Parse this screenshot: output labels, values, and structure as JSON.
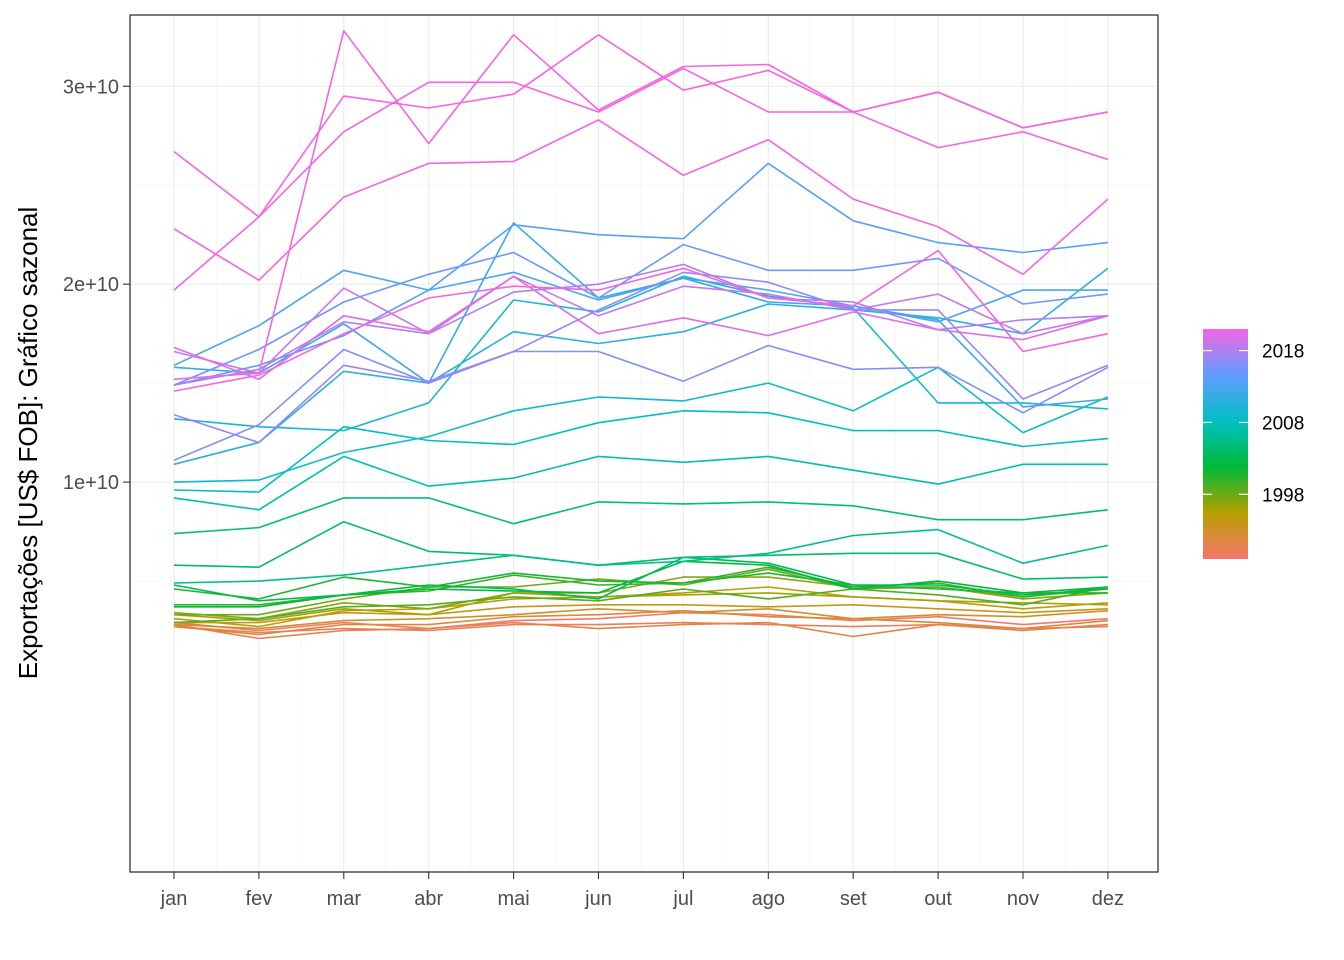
{
  "chart_data": {
    "type": "line",
    "title": "",
    "xlabel": "",
    "ylabel": "Exportações [US$ FOB]: Gráfico sazonal",
    "categories": [
      "jan",
      "fev",
      "mar",
      "abr",
      "mai",
      "jun",
      "jul",
      "ago",
      "set",
      "out",
      "nov",
      "dez"
    ],
    "ylim": [
      -9700000000,
      33600000000
    ],
    "y_ticks": [
      10000000000,
      20000000000,
      30000000000
    ],
    "y_tick_labels": [
      "1e+10",
      "2e+10",
      "3e+10"
    ],
    "grid": true,
    "legend": {
      "position": "right",
      "type": "colorbar",
      "range": [
        1989,
        2021
      ],
      "breaks": [
        1998,
        2008,
        2018
      ],
      "labels": [
        "1998",
        "2008",
        "2018"
      ],
      "gradient": [
        "#F8766D",
        "#B79F00",
        "#00BA38",
        "#00BFC4",
        "#619CFF",
        "#F564E3"
      ]
    },
    "series": [
      {
        "year": 1989,
        "values": [
          2900000000,
          2500000000,
          2900000000,
          2600000000,
          3000000000,
          3100000000,
          3400000000,
          3300000000,
          3000000000,
          3200000000,
          2800000000,
          3100000000
        ]
      },
      {
        "year": 1990,
        "values": [
          2700000000,
          2400000000,
          2600000000,
          2500000000,
          2800000000,
          2800000000,
          2900000000,
          2800000000,
          2700000000,
          2800000000,
          2600000000,
          2700000000
        ]
      },
      {
        "year": 1991,
        "values": [
          2800000000,
          2100000000,
          2500000000,
          2600000000,
          2900000000,
          2600000000,
          2800000000,
          2900000000,
          2200000000,
          2800000000,
          2500000000,
          2800000000
        ]
      },
      {
        "year": 1992,
        "values": [
          2700000000,
          2300000000,
          2800000000,
          2800000000,
          3200000000,
          3300000000,
          3500000000,
          3200000000,
          3100000000,
          2900000000,
          2600000000,
          3000000000
        ]
      },
      {
        "year": 1993,
        "values": [
          2800000000,
          2600000000,
          3000000000,
          3100000000,
          3300000000,
          3600000000,
          3400000000,
          3600000000,
          3100000000,
          3300000000,
          3200000000,
          3500000000
        ]
      },
      {
        "year": 1994,
        "values": [
          2900000000,
          2900000000,
          3400000000,
          3300000000,
          3700000000,
          3800000000,
          3800000000,
          3700000000,
          3800000000,
          3600000000,
          3400000000,
          3600000000
        ]
      },
      {
        "year": 1995,
        "values": [
          3100000000,
          2700000000,
          3500000000,
          3600000000,
          4100000000,
          4200000000,
          4400000000,
          4700000000,
          4200000000,
          4000000000,
          3600000000,
          3900000000
        ]
      },
      {
        "year": 1996,
        "values": [
          3300000000,
          3000000000,
          3600000000,
          3300000000,
          4400000000,
          4200000000,
          4300000000,
          4400000000,
          4200000000,
          4000000000,
          3900000000,
          3800000000
        ]
      },
      {
        "year": 1997,
        "values": [
          3400000000,
          3100000000,
          3900000000,
          3600000000,
          4400000000,
          4400000000,
          5200000000,
          5200000000,
          4700000000,
          4700000000,
          4100000000,
          4400000000
        ]
      },
      {
        "year": 1998,
        "values": [
          3300000000,
          3300000000,
          4100000000,
          4700000000,
          4700000000,
          5100000000,
          4800000000,
          5600000000,
          4600000000,
          4700000000,
          4200000000,
          4600000000
        ]
      },
      {
        "year": 1999,
        "values": [
          2900000000,
          3100000000,
          3700000000,
          3800000000,
          4200000000,
          4000000000,
          4600000000,
          4100000000,
          4600000000,
          4300000000,
          3800000000,
          4700000000
        ]
      },
      {
        "year": 2000,
        "values": [
          3800000000,
          3800000000,
          4300000000,
          4500000000,
          5300000000,
          4800000000,
          4900000000,
          5700000000,
          4700000000,
          4900000000,
          4200000000,
          4700000000
        ]
      },
      {
        "year": 2001,
        "values": [
          4600000000,
          4100000000,
          5200000000,
          4700000000,
          5400000000,
          5000000000,
          4900000000,
          5400000000,
          4800000000,
          4600000000,
          4400000000,
          4400000000
        ]
      },
      {
        "year": 2002,
        "values": [
          3700000000,
          3700000000,
          4300000000,
          4600000000,
          4500000000,
          4400000000,
          6000000000,
          5800000000,
          4600000000,
          5000000000,
          4400000000,
          4700000000
        ]
      },
      {
        "year": 2003,
        "values": [
          4800000000,
          4000000000,
          4300000000,
          4800000000,
          4600000000,
          4100000000,
          6200000000,
          5900000000,
          4800000000,
          4800000000,
          4300000000,
          4600000000
        ]
      },
      {
        "year": 2004,
        "values": [
          5800000000,
          5700000000,
          8000000000,
          6500000000,
          6300000000,
          5800000000,
          6200000000,
          6300000000,
          6400000000,
          6400000000,
          5100000000,
          5200000000
        ]
      },
      {
        "year": 2005,
        "values": [
          7400000000,
          7700000000,
          9200000000,
          9200000000,
          7900000000,
          9000000000,
          8900000000,
          9000000000,
          8800000000,
          8100000000,
          8100000000,
          8600000000
        ]
      },
      {
        "year": 2006,
        "values": [
          4900000000,
          5000000000,
          5300000000,
          5800000000,
          6300000000,
          5800000000,
          6000000000,
          6400000000,
          7300000000,
          7600000000,
          5900000000,
          6800000000
        ]
      },
      {
        "year": 2007,
        "values": [
          9200000000,
          8600000000,
          11300000000,
          9800000000,
          10200000000,
          11300000000,
          11000000000,
          11300000000,
          10600000000,
          9900000000,
          10900000000,
          10900000000
        ]
      },
      {
        "year": 2008,
        "values": [
          9600000000,
          9500000000,
          12800000000,
          12100000000,
          11900000000,
          13000000000,
          13600000000,
          13500000000,
          12600000000,
          12600000000,
          11800000000,
          12200000000
        ]
      },
      {
        "year": 2009,
        "values": [
          10000000000,
          10100000000,
          11500000000,
          12300000000,
          13600000000,
          14300000000,
          14100000000,
          15000000000,
          13600000000,
          15800000000,
          12500000000,
          14300000000
        ]
      },
      {
        "year": 2010,
        "values": [
          13200000000,
          12800000000,
          12600000000,
          14000000000,
          19200000000,
          18600000000,
          20400000000,
          19400000000,
          18800000000,
          14000000000,
          14000000000,
          13700000000
        ]
      },
      {
        "year": 2011,
        "values": [
          10900000000,
          12000000000,
          15600000000,
          15000000000,
          17600000000,
          17000000000,
          17600000000,
          19000000000,
          18700000000,
          18300000000,
          17500000000,
          20800000000
        ]
      },
      {
        "year": 2012,
        "values": [
          15800000000,
          15500000000,
          18000000000,
          15000000000,
          23100000000,
          19300000000,
          20300000000,
          19100000000,
          18900000000,
          18200000000,
          13800000000,
          14200000000
        ]
      },
      {
        "year": 2013,
        "values": [
          15900000000,
          17900000000,
          20700000000,
          19700000000,
          20600000000,
          19200000000,
          20300000000,
          19700000000,
          18900000000,
          18100000000,
          19700000000,
          19700000000
        ]
      },
      {
        "year": 2014,
        "values": [
          14900000000,
          15900000000,
          17400000000,
          19700000000,
          23000000000,
          22500000000,
          22300000000,
          26100000000,
          23200000000,
          22100000000,
          21600000000,
          22100000000
        ]
      },
      {
        "year": 2015,
        "values": [
          14900000000,
          16700000000,
          19100000000,
          20500000000,
          21600000000,
          19300000000,
          22000000000,
          20700000000,
          20700000000,
          21300000000,
          19000000000,
          19500000000
        ]
      },
      {
        "year": 2016,
        "values": [
          11100000000,
          12900000000,
          16700000000,
          15000000000,
          16600000000,
          16600000000,
          15100000000,
          16900000000,
          15700000000,
          15800000000,
          13500000000,
          15800000000
        ]
      },
      {
        "year": 2017,
        "values": [
          13400000000,
          12000000000,
          15900000000,
          15100000000,
          16600000000,
          18700000000,
          20600000000,
          20100000000,
          18700000000,
          18700000000,
          14200000000,
          15900000000
        ]
      },
      {
        "year": 2018,
        "values": [
          14900000000,
          15700000000,
          18100000000,
          17500000000,
          19600000000,
          20000000000,
          21000000000,
          19300000000,
          19100000000,
          17700000000,
          18200000000,
          18400000000
        ]
      },
      {
        "year": 2019,
        "values": [
          16600000000,
          15500000000,
          19800000000,
          17500000000,
          20400000000,
          18400000000,
          19900000000,
          19500000000,
          18700000000,
          19500000000,
          17500000000,
          18400000000
        ]
      },
      {
        "year": 2020,
        "values": [
          16800000000,
          15200000000,
          18400000000,
          17600000000,
          20400000000,
          17500000000,
          18300000000,
          17400000000,
          18600000000,
          17700000000,
          17200000000,
          18400000000
        ]
      },
      {
        "year": 2021,
        "values": [
          14600000000,
          15400000000,
          17500000000,
          19300000000,
          19900000000,
          19700000000,
          20800000000,
          19300000000,
          18900000000,
          21700000000,
          16600000000,
          17500000000
        ]
      },
      {
        "year": 2022,
        "values": [
          19700000000,
          23400000000,
          29500000000,
          28900000000,
          29600000000,
          32600000000,
          29800000000,
          30800000000,
          28700000000,
          26900000000,
          27700000000,
          26300000000
        ]
      },
      {
        "year": 2023,
        "values": [
          26700000000,
          23400000000,
          27700000000,
          30200000000,
          30200000000,
          28700000000,
          30900000000,
          28700000000,
          28700000000,
          29700000000,
          27900000000,
          28700000000
        ]
      },
      {
        "year": 2024,
        "values": [
          22800000000,
          20200000000,
          24400000000,
          26100000000,
          26200000000,
          28300000000,
          25500000000,
          27300000000,
          24300000000,
          22900000000,
          20500000000,
          24300000000
        ]
      },
      {
        "year": 2025,
        "values": [
          15200000000,
          15500000000,
          32800000000,
          27100000000,
          32600000000,
          28800000000,
          31000000000,
          31100000000,
          28700000000,
          29700000000,
          27900000000,
          28700000000
        ]
      }
    ]
  }
}
